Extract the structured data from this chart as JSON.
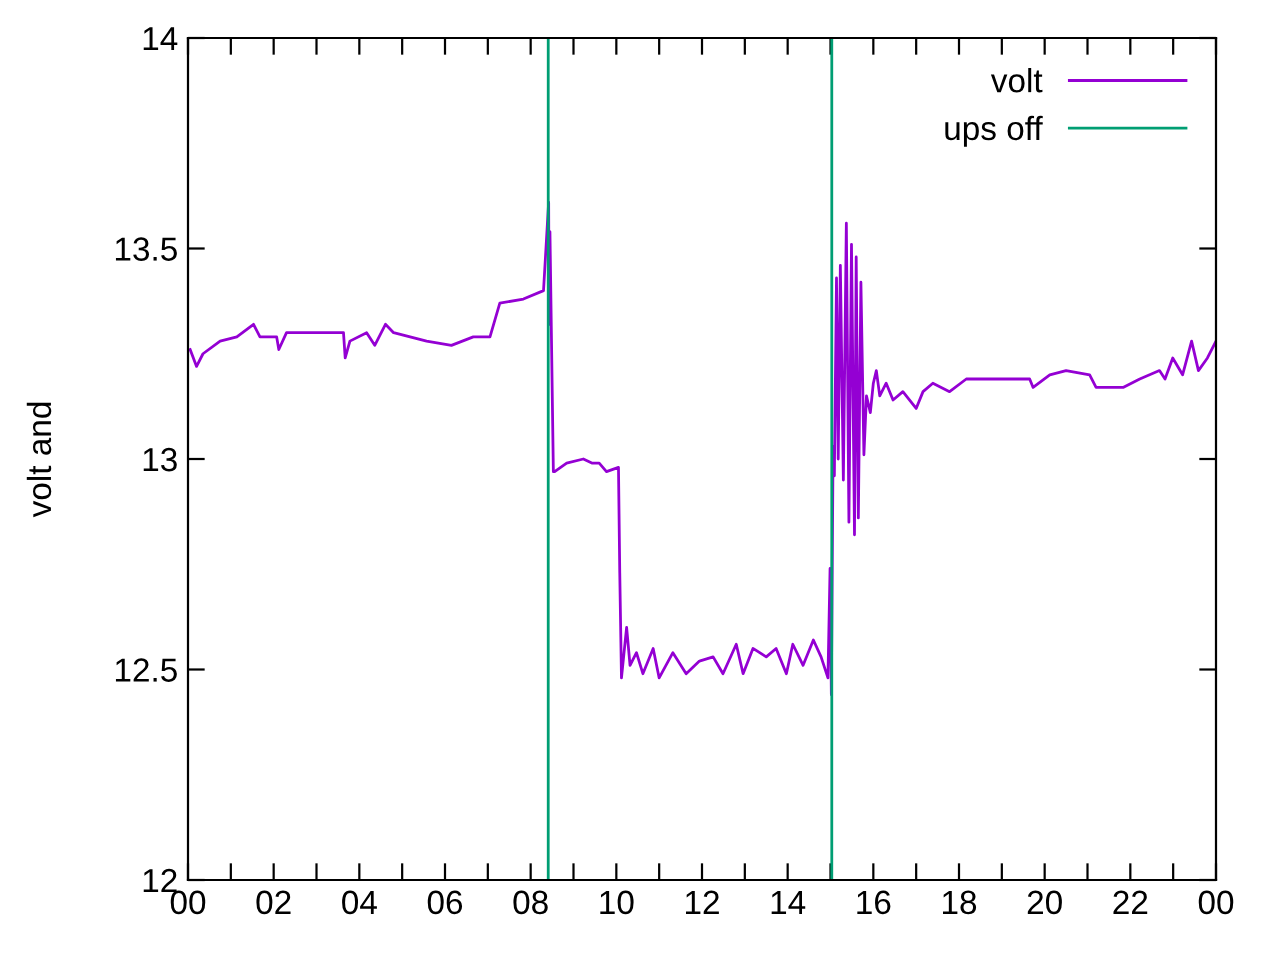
{
  "chart_data": {
    "type": "line",
    "ylabel": "volt and",
    "legend": "top right",
    "grid": false,
    "marker": "none",
    "line_style": "solid",
    "xlim": [
      0,
      24
    ],
    "ylim": [
      12,
      14
    ],
    "xticks": [
      {
        "value": 0,
        "label": "00"
      },
      {
        "value": 1,
        "label": null
      },
      {
        "value": 2,
        "label": "02"
      },
      {
        "value": 3,
        "label": null
      },
      {
        "value": 4,
        "label": "04"
      },
      {
        "value": 5,
        "label": null
      },
      {
        "value": 6,
        "label": "06"
      },
      {
        "value": 7,
        "label": null
      },
      {
        "value": 8,
        "label": "08"
      },
      {
        "value": 9,
        "label": null
      },
      {
        "value": 10,
        "label": "10"
      },
      {
        "value": 11,
        "label": null
      },
      {
        "value": 12,
        "label": "12"
      },
      {
        "value": 13,
        "label": null
      },
      {
        "value": 14,
        "label": "14"
      },
      {
        "value": 15,
        "label": null
      },
      {
        "value": 16,
        "label": "16"
      },
      {
        "value": 17,
        "label": null
      },
      {
        "value": 18,
        "label": "18"
      },
      {
        "value": 19,
        "label": null
      },
      {
        "value": 20,
        "label": "20"
      },
      {
        "value": 21,
        "label": null
      },
      {
        "value": 22,
        "label": "22"
      },
      {
        "value": 23,
        "label": null
      },
      {
        "value": 24,
        "label": "00"
      }
    ],
    "yticks": [
      12,
      12.5,
      13,
      13.5,
      14
    ],
    "series": [
      {
        "name": "volt",
        "color": "#9400d3",
        "x": [
          0.05,
          0.2,
          0.35,
          0.75,
          1.14,
          1.53,
          1.68,
          2.07,
          2.12,
          2.3,
          3.63,
          3.67,
          3.78,
          4.17,
          4.36,
          4.61,
          4.8,
          5.57,
          6.15,
          6.66,
          7.05,
          7.28,
          7.83,
          8.3,
          8.42,
          8.43,
          8.45,
          8.53,
          8.56,
          8.84,
          9.23,
          9.44,
          9.6,
          9.77,
          10.05,
          10.08,
          10.12,
          10.24,
          10.32,
          10.47,
          10.62,
          10.86,
          11.0,
          11.32,
          11.63,
          11.94,
          12.26,
          12.49,
          12.8,
          12.96,
          13.19,
          13.5,
          13.73,
          13.97,
          14.12,
          14.36,
          14.6,
          14.78,
          14.94,
          14.99,
          15.02,
          15.06,
          15.09,
          15.14,
          15.18,
          15.23,
          15.3,
          15.37,
          15.43,
          15.49,
          15.56,
          15.6,
          15.65,
          15.71,
          15.78,
          15.84,
          15.93,
          16.0,
          16.07,
          16.15,
          16.3,
          16.46,
          16.69,
          17.0,
          17.16,
          17.39,
          17.78,
          18.17,
          18.95,
          19.65,
          19.73,
          20.12,
          20.5,
          21.05,
          21.2,
          21.83,
          22.22,
          22.68,
          22.81,
          22.99,
          23.22,
          23.43,
          23.59,
          23.8,
          24.0
        ],
        "values": [
          13.26,
          13.22,
          13.25,
          13.28,
          13.29,
          13.32,
          13.29,
          13.29,
          13.26,
          13.3,
          13.3,
          13.24,
          13.28,
          13.3,
          13.27,
          13.32,
          13.3,
          13.28,
          13.27,
          13.29,
          13.29,
          13.37,
          13.38,
          13.4,
          13.61,
          13.32,
          13.54,
          12.97,
          12.97,
          12.99,
          13.0,
          12.99,
          12.99,
          12.97,
          12.98,
          12.73,
          12.48,
          12.6,
          12.51,
          12.54,
          12.49,
          12.55,
          12.48,
          12.54,
          12.49,
          12.52,
          12.53,
          12.49,
          12.56,
          12.49,
          12.55,
          12.53,
          12.55,
          12.49,
          12.56,
          12.51,
          12.57,
          12.53,
          12.48,
          12.74,
          12.44,
          13.03,
          12.96,
          13.43,
          13.0,
          13.46,
          12.95,
          13.56,
          12.85,
          13.51,
          12.82,
          13.48,
          12.86,
          13.42,
          13.01,
          13.15,
          13.11,
          13.18,
          13.21,
          13.15,
          13.18,
          13.14,
          13.16,
          13.12,
          13.16,
          13.18,
          13.16,
          13.19,
          13.19,
          13.19,
          13.17,
          13.2,
          13.21,
          13.2,
          13.17,
          13.17,
          13.19,
          13.21,
          13.19,
          13.24,
          13.2,
          13.28,
          13.21,
          13.24,
          13.28
        ]
      },
      {
        "name": "ups off",
        "color": "#009e73",
        "x": [
          8.41,
          8.41,
          8.45,
          15.03,
          15.03
        ],
        "values": [
          12,
          14,
          null,
          14,
          12
        ]
      }
    ]
  }
}
